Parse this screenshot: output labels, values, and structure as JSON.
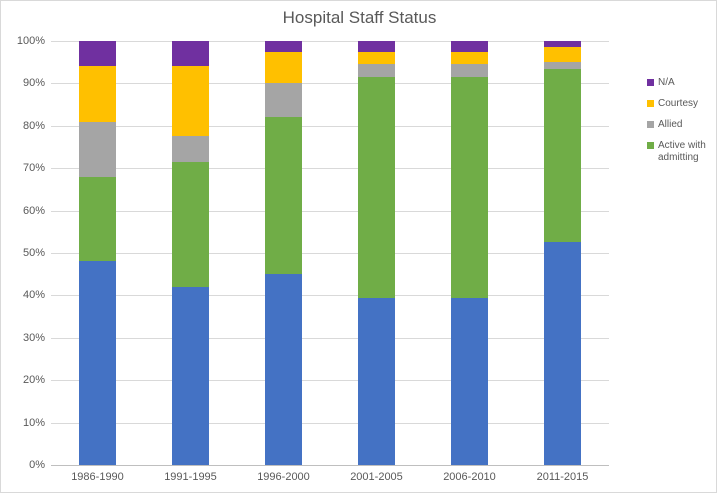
{
  "chart_data": {
    "type": "bar",
    "subtype": "stacked-100-percent-column",
    "title": "Hospital Staff Status",
    "xlabel": "",
    "ylabel": "",
    "ylim": [
      0,
      100
    ],
    "grid": true,
    "legend_position": "right",
    "yticks": [
      "0%",
      "10%",
      "20%",
      "30%",
      "40%",
      "50%",
      "60%",
      "70%",
      "80%",
      "90%",
      "100%"
    ],
    "categories": [
      "1986-1990",
      "1991-1995",
      "1996-2000",
      "2001-2005",
      "2006-2010",
      "2011-2015"
    ],
    "series": [
      {
        "name": "",
        "in_legend": false,
        "color": "#4472c4",
        "values": [
          48,
          42,
          45,
          39.5,
          39.5,
          52.5
        ]
      },
      {
        "name": "Active with admitting",
        "in_legend": true,
        "color": "#70ad47",
        "values": [
          20,
          29.5,
          37,
          52,
          52,
          41
        ]
      },
      {
        "name": "Allied",
        "in_legend": true,
        "color": "#a5a5a5",
        "values": [
          13,
          6,
          8,
          3,
          3,
          1.5
        ]
      },
      {
        "name": "Courtesy",
        "in_legend": true,
        "color": "#ffc000",
        "values": [
          13,
          16.5,
          7.5,
          3,
          3,
          3.5
        ]
      },
      {
        "name": "N/A",
        "in_legend": true,
        "color": "#7030a0",
        "values": [
          6,
          6,
          2.5,
          2.5,
          2.5,
          1.5
        ]
      }
    ],
    "colors": {
      "gridline": "#d9d9d9",
      "axis_line": "#bfbfbf",
      "text": "#595959"
    }
  }
}
